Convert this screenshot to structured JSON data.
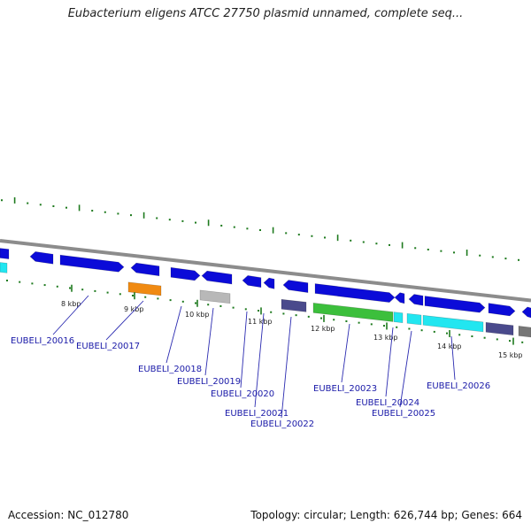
{
  "title": "Eubacterium eligens ATCC 27750 plasmid unnamed, complete seq...",
  "footer": {
    "accession": "Accession: NC_012780",
    "summary": "Topology: circular; Length: 626,744 bp; Genes: 664"
  },
  "colors": {
    "backbone": "#8c8c8c",
    "tick": "#1e7a1e",
    "label": "#1a1aa8",
    "leader": "#2a2ab0",
    "cds_forward": "#0b0bd8",
    "cds_orange": "#f08a12",
    "cds_grey": "#b8b8b8",
    "cds_slate": "#4a4a8c",
    "cds_green": "#3cbf3c",
    "cds_cyan": "#22e6f0"
  },
  "scale_labels": [
    "8 kbp",
    "9 kbp",
    "10 kbp",
    "11 kbp",
    "12 kbp",
    "13 kbp",
    "14 kbp",
    "15 kbp"
  ],
  "gene_labels": [
    "EUBELI_20016",
    "EUBELI_20017",
    "EUBELI_20018",
    "EUBELI_20019",
    "EUBELI_20020",
    "EUBELI_20021",
    "EUBELI_20022",
    "EUBELI_20023",
    "EUBELI_20024",
    "EUBELI_20025",
    "EUBELI_20026"
  ]
}
